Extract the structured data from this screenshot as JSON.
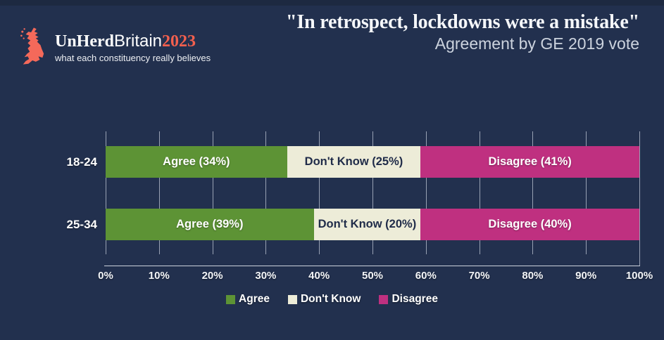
{
  "brand": {
    "name_bold": "UnHerd",
    "name_regular": "Britain",
    "name_year": "2023",
    "tagline": "what each constituency really believes",
    "accent_color": "#f4604e"
  },
  "header": {
    "title": "\"In retrospect, lockdowns were a mistake\"",
    "subtitle": "Agreement by GE 2019 vote"
  },
  "chart_data": {
    "type": "bar",
    "orientation": "horizontal",
    "stacked": true,
    "title": "\"In retrospect, lockdowns were a mistake\"",
    "subtitle": "Agreement by GE 2019 vote",
    "categories": [
      "18-24",
      "25-34"
    ],
    "series": [
      {
        "name": "Agree",
        "color": "#5d9335",
        "text_color": "#ffffff",
        "values": [
          34,
          39
        ]
      },
      {
        "name": "Don't Know",
        "color": "#edecd8",
        "text_color": "#202c49",
        "values": [
          25,
          20
        ]
      },
      {
        "name": "Disagree",
        "color": "#bf3080",
        "text_color": "#ffffff",
        "values": [
          41,
          40
        ]
      }
    ],
    "bar_labels": [
      [
        "Agree (34%)",
        "Don't Know (25%)",
        "Disagree (41%)"
      ],
      [
        "Agree (39%)",
        "Don't Know (20%)",
        "Disagree (40%)"
      ]
    ],
    "x_ticks": [
      "0%",
      "10%",
      "20%",
      "30%",
      "40%",
      "50%",
      "60%",
      "70%",
      "80%",
      "90%",
      "100%"
    ],
    "xlim": [
      0,
      100
    ],
    "grid": true,
    "legend": [
      "Agree",
      "Don't Know",
      "Disagree"
    ],
    "legend_position": "bottom"
  },
  "colors": {
    "background": "#22304e",
    "top_band": "#1d2941",
    "gridline": "#98a1b3",
    "axis": "#ccd2db",
    "tick_text": "#f3f5f8",
    "subtitle_text": "#ccd3de"
  }
}
